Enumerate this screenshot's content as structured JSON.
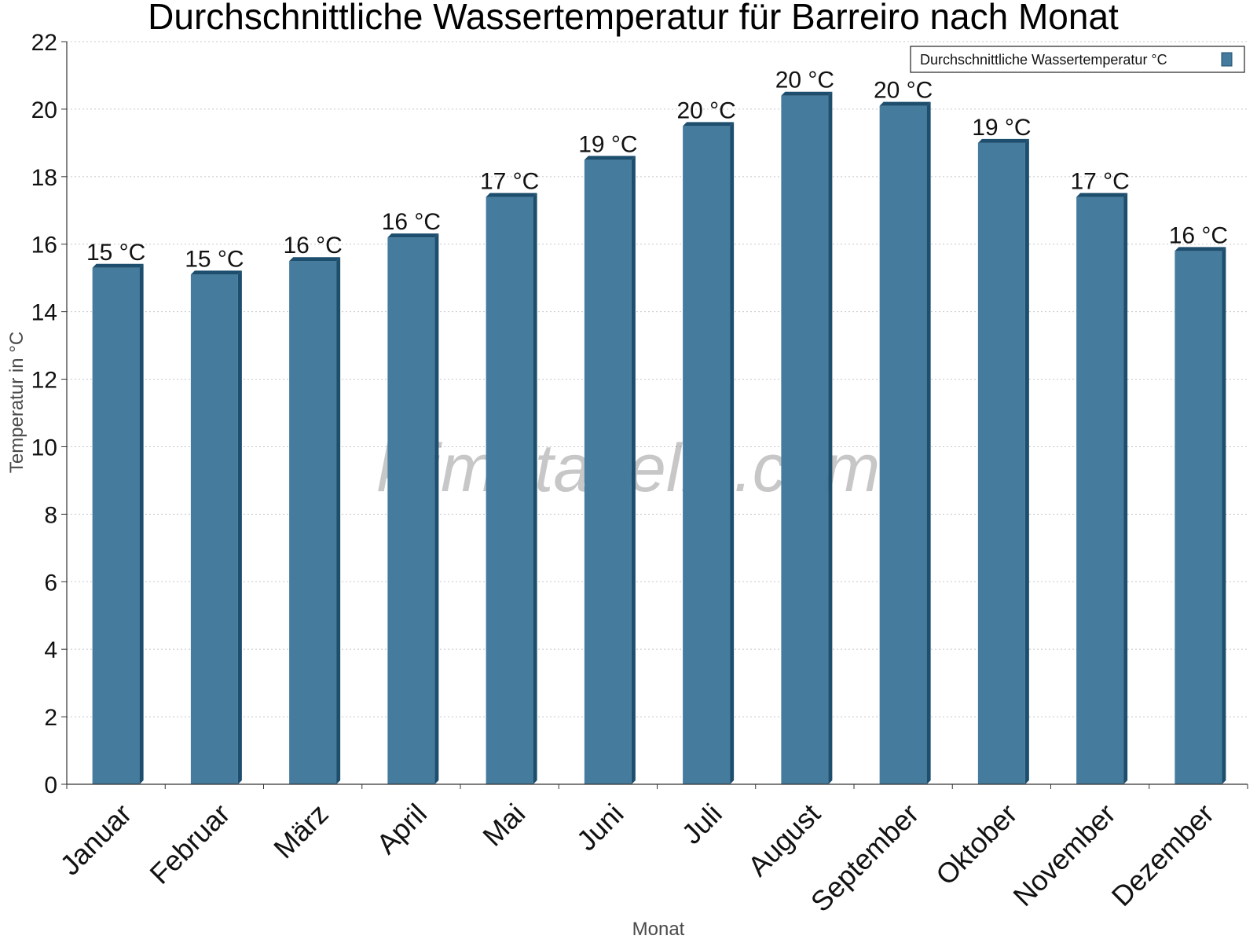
{
  "chart_data": {
    "type": "bar",
    "title": "Durchschnittliche Wassertemperatur für Barreiro nach Monat",
    "xlabel": "Monat",
    "ylabel": "Temperatur in °C",
    "categories": [
      "Januar",
      "Februar",
      "März",
      "April",
      "Mai",
      "Juni",
      "Juli",
      "August",
      "September",
      "Oktober",
      "November",
      "Dezember"
    ],
    "series": [
      {
        "name": "Durchschnittliche Wassertemperatur °C",
        "values": [
          15.3,
          15.1,
          15.5,
          16.2,
          17.4,
          18.5,
          19.5,
          20.4,
          20.1,
          19.0,
          17.4,
          15.8
        ],
        "labels": [
          "15 °C",
          "15 °C",
          "16 °C",
          "16 °C",
          "17 °C",
          "19 °C",
          "20 °C",
          "20 °C",
          "20 °C",
          "19 °C",
          "17 °C",
          "16 °C"
        ]
      }
    ],
    "ylim": [
      0,
      22
    ],
    "yticks": [
      0,
      2,
      4,
      6,
      8,
      10,
      12,
      14,
      16,
      18,
      20,
      22
    ],
    "grid": true,
    "legend_position": "top-right",
    "colors": {
      "bar": "#457b9d",
      "bar_dark": "#1d4e6e",
      "grid": "#c8c8c8"
    }
  },
  "watermark": "klimatabelle.com"
}
